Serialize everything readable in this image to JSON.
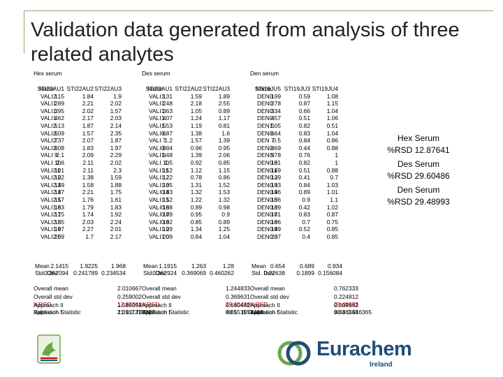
{
  "title": "Validation data generated from analysis of three related analytes",
  "sections": [
    {
      "heading": "Hex serum",
      "cols": [
        "Name",
        "STI22AU1",
        "STI22AU2",
        "STI22AU3"
      ],
      "rows": [
        [
          "VALI 1",
          "2.15",
          "1.84",
          "1.9"
        ],
        [
          "VALI 2",
          "1.89",
          "2.21",
          "2.02"
        ],
        [
          "VALI 3",
          "1.95",
          "2.02",
          "1.57"
        ],
        [
          "VALI 4",
          "1.62",
          "2.17",
          "2.03"
        ],
        [
          "VALI 5",
          "2.13",
          "1.87",
          "2.14"
        ],
        [
          "VALI 6",
          "2.09",
          "1.57",
          "2.35"
        ],
        [
          "VALI 7",
          "2.37",
          "2.07",
          "1.87"
        ],
        [
          "VALI 8",
          "2.08",
          "1.83",
          "1.97"
        ],
        [
          "VALI 9",
          "2.1",
          "2.09",
          "2.29"
        ],
        [
          "VALI 10",
          "2.6",
          "2.11",
          "2.02"
        ],
        [
          "VALI 11",
          "2.01",
          "2.11",
          "2.3"
        ],
        [
          "VALI 12",
          "2.02",
          "1.38",
          "1.59"
        ],
        [
          "VALI 13",
          "2.49",
          "1.58",
          "1.88"
        ],
        [
          "VALI 14",
          "2.37",
          "2.21",
          "1.75"
        ],
        [
          "VALI 15",
          "2.17",
          "1.76",
          "1.61"
        ],
        [
          "VALI 16",
          "1.83",
          "1.79",
          "1.83"
        ],
        [
          "VALI 17",
          "2.15",
          "1.74",
          "1.92"
        ],
        [
          "VALI 18",
          "2.35",
          "2.03",
          "2.24"
        ],
        [
          "VALI 19",
          "1.87",
          "2.27",
          "2.01"
        ],
        [
          "VALI 20",
          "2.59",
          "1.7",
          "2.17"
        ]
      ],
      "mean": [
        "Mean",
        "2.1415",
        "1.9225",
        "1.968"
      ],
      "sd": [
        "Std. Dev.",
        "0.257094",
        "0.241789",
        "0.234534"
      ],
      "stats": [
        [
          "Overall mean",
          "2.010667"
        ],
        [
          "Overall std dev",
          "0.259002"
        ],
        [
          "%RSD",
          "12.87641"
        ],
        [
          "Validation Statistic",
          "21.11731",
          "0.788827"
        ]
      ],
      "approach": [
        [
          "Approach II",
          "1.586058"
        ],
        [
          "Approach I",
          "1.39"
        ]
      ]
    },
    {
      "heading": "Des serum",
      "cols": [
        "Name",
        "STI22AU1",
        "STI22AU2",
        "STI22AU3"
      ],
      "rows": [
        [
          "VALI 1",
          "1.31",
          "1.59",
          "1.89"
        ],
        [
          "VALI 2",
          "1.48",
          "2.18",
          "2.55"
        ],
        [
          "VALI 3",
          "1.63",
          "1.05",
          "0.89"
        ],
        [
          "VALI 4",
          "1.07",
          "1.24",
          "1.17"
        ],
        [
          "VALI 5",
          "1.53",
          "1.19",
          "0.81"
        ],
        [
          "VALI 6",
          "0.87",
          "1.38",
          "1.6"
        ],
        [
          "VALI 7",
          "1.2",
          "1.57",
          "1.39"
        ],
        [
          "VALI 8",
          "0.84",
          "0.96",
          "0.95"
        ],
        [
          "VALI 9",
          "1.48",
          "1.39",
          "2.06"
        ],
        [
          "VALI 10",
          "1.5",
          "0.92",
          "0.85"
        ],
        [
          "VALI 11",
          "1.52",
          "1.12",
          "1.15"
        ],
        [
          "VALI 12",
          "1.22",
          "0.78",
          "0.86"
        ],
        [
          "VALI 13",
          "1.05",
          "1.31",
          "1.52"
        ],
        [
          "VALI 14",
          "0.83",
          "1.32",
          "1.53"
        ],
        [
          "VALI 15",
          "1.12",
          "1.22",
          "1.32"
        ],
        [
          "VALI 16",
          "0.88",
          "0.89",
          "0.98"
        ],
        [
          "VALI 17",
          "0.89",
          "0.95",
          "0.9"
        ],
        [
          "VALI 18",
          "0.92",
          "0.85",
          "0.89"
        ],
        [
          "VALI 19",
          "1.29",
          "1.34",
          "1.25"
        ],
        [
          "VALI 20",
          "1.09",
          "0.84",
          "1.04"
        ]
      ],
      "mean": [
        "Mean",
        "1.1915",
        "1.263",
        "1.28"
      ],
      "sd": [
        "Std. Dev.",
        "0.262924",
        "0.369069",
        "0.460262"
      ],
      "stats": [
        [
          "Overall mean",
          "1.244833"
        ],
        [
          "Overall std dev",
          "0.369631"
        ],
        [
          "%RSD",
          "29.60486"
        ],
        [
          "Validation Statistic",
          "48.55197",
          "0.51448"
        ]
      ],
      "approach": [
        [
          "Approach II",
          "0.640442"
        ],
        [
          "Approach I",
          "0.81"
        ]
      ]
    },
    {
      "heading": "Den serum",
      "cols": [
        "Name",
        "STI19JU5",
        "STI19JU3",
        "STI19JU4"
      ],
      "rows": [
        [
          "DEN 1",
          "0.99",
          "0.59",
          "1.08"
        ],
        [
          "DEN 2",
          "0.78",
          "0.87",
          "1.15"
        ],
        [
          "DEN 3",
          "0.34",
          "0.66",
          "1.04"
        ],
        [
          "DEN 4",
          "0.57",
          "0.51",
          "1.06"
        ],
        [
          "DEN 5",
          "1.05",
          "0.82",
          "0.51"
        ],
        [
          "DEN 6",
          "0.64",
          "0.83",
          "1.04"
        ],
        [
          "DEN 7",
          "0.5",
          "0.84",
          "0.86"
        ],
        [
          "DEN 8",
          "0.69",
          "0.44",
          "0.88"
        ],
        [
          "DEN 9",
          "0.78",
          "0.76",
          "1"
        ],
        [
          "DEN 10",
          "0.81",
          "0.82",
          "1"
        ],
        [
          "DEN 11",
          "0.49",
          "0.51",
          "0.88"
        ],
        [
          "DEN 12",
          "0.39",
          "0.41",
          "0.7"
        ],
        [
          "DEN 13",
          "0.93",
          "0.84",
          "1.03"
        ],
        [
          "DEN 14",
          "0.96",
          "0.89",
          "1.01"
        ],
        [
          "DEN 15",
          "0.86",
          "0.9",
          "1.1"
        ],
        [
          "DEN 16",
          "0.39",
          "0.42",
          "1.02"
        ],
        [
          "DEN 17",
          "0.61",
          "0.83",
          "0.87"
        ],
        [
          "DEN 18",
          "0.66",
          "0.7",
          "0.75"
        ],
        [
          "DEN 19",
          "0.49",
          "0.52",
          "0.85"
        ],
        [
          "DEN 20",
          "0.37",
          "0.4",
          "0.85"
        ]
      ],
      "mean": [
        "Mean",
        "0.654",
        "0.689",
        "0.934"
      ],
      "sd": [
        "Std. Dev.",
        "0.22638",
        "0.1899",
        "0.156084"
      ],
      "stats": [
        [
          "Overall mean",
          "0.762333"
        ],
        [
          "Overall std dev",
          "0.224812"
        ],
        [
          "%RSD",
          "29.48993"
        ],
        [
          "Validation Statistic",
          "48.36348",
          "0.516365"
        ]
      ],
      "approach": [
        [
          "Approach II",
          "0.309642"
        ],
        [
          "Approach I",
          "0.34"
        ]
      ]
    }
  ],
  "summary": [
    {
      "heading": "Hex Serum",
      "value": "%RSD 12.87641"
    },
    {
      "heading": "Des Serum",
      "value": "%RSD 29.60486"
    },
    {
      "heading": "Den Serum",
      "value": "%RSD 29.48993"
    }
  ],
  "logo": {
    "name": "Eurachem",
    "subtitle": "Ireland",
    "colors": {
      "primary": "#1f4e79",
      "accent": "#6aa84f"
    }
  },
  "colors": {
    "rsd": "#c00000",
    "frame": "#8aa86e"
  }
}
